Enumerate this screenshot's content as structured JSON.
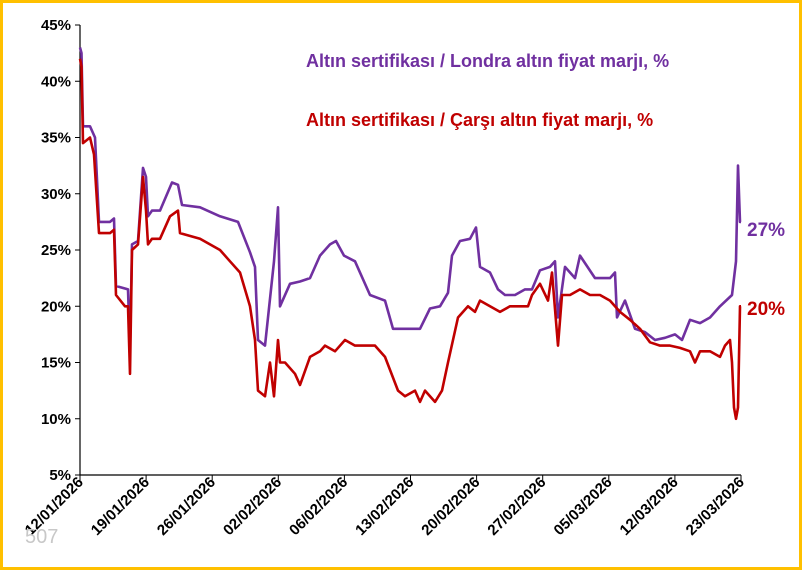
{
  "chart_data": {
    "type": "line",
    "ylim": [
      5,
      45
    ],
    "y_tick_labels": [
      "5%",
      "10%",
      "15%",
      "20%",
      "25%",
      "30%",
      "35%",
      "40%",
      "45%"
    ],
    "x_tick_labels": [
      "12/01/2026",
      "19/01/2026",
      "26/01/2026",
      "02/02/2026",
      "06/02/2026",
      "13/02/2026",
      "20/02/2026",
      "27/02/2026",
      "05/03/2026",
      "12/03/2026",
      "23/03/2026"
    ],
    "grid": false,
    "legend_position": "top-right",
    "watermark": "507",
    "series": [
      {
        "name": "Altın sertifikası / Londra altın fiyat marjı, %",
        "color": "#7030a0",
        "end_label": "27%",
        "points": [
          [
            0,
            43
          ],
          [
            1.5,
            42.5
          ],
          [
            3,
            36
          ],
          [
            10,
            36
          ],
          [
            15,
            35
          ],
          [
            19,
            27.5
          ],
          [
            30,
            27.5
          ],
          [
            34,
            27.8
          ],
          [
            36,
            21.8
          ],
          [
            48,
            21.5
          ],
          [
            50,
            16
          ],
          [
            52,
            25.5
          ],
          [
            58,
            25.8
          ],
          [
            63,
            32.3
          ],
          [
            66,
            31.5
          ],
          [
            68,
            28
          ],
          [
            72,
            28.5
          ],
          [
            80,
            28.5
          ],
          [
            92,
            31
          ],
          [
            98,
            30.8
          ],
          [
            102,
            29
          ],
          [
            120,
            28.8
          ],
          [
            140,
            28
          ],
          [
            158,
            27.5
          ],
          [
            170,
            24.8
          ],
          [
            175,
            23.5
          ],
          [
            178,
            17
          ],
          [
            185,
            16.5
          ],
          [
            194,
            24
          ],
          [
            198,
            28.8
          ],
          [
            200,
            20
          ],
          [
            210,
            22
          ],
          [
            220,
            22.2
          ],
          [
            230,
            22.5
          ],
          [
            240,
            24.5
          ],
          [
            250,
            25.5
          ],
          [
            256,
            25.8
          ],
          [
            264,
            24.5
          ],
          [
            275,
            24
          ],
          [
            290,
            21
          ],
          [
            305,
            20.5
          ],
          [
            313,
            18
          ],
          [
            330,
            18
          ],
          [
            340,
            18
          ],
          [
            350,
            19.8
          ],
          [
            360,
            20
          ],
          [
            368,
            21.2
          ],
          [
            372,
            24.5
          ],
          [
            380,
            25.8
          ],
          [
            390,
            26
          ],
          [
            396,
            27
          ],
          [
            400,
            23.5
          ],
          [
            410,
            23
          ],
          [
            418,
            21.5
          ],
          [
            425,
            21
          ],
          [
            435,
            21
          ],
          [
            445,
            21.5
          ],
          [
            452,
            21.5
          ],
          [
            460,
            23.2
          ],
          [
            470,
            23.5
          ],
          [
            475,
            24
          ],
          [
            478,
            19
          ],
          [
            485,
            23.5
          ],
          [
            495,
            22.5
          ],
          [
            500,
            24.5
          ],
          [
            515,
            22.5
          ],
          [
            530,
            22.5
          ],
          [
            535,
            23
          ],
          [
            537,
            19
          ],
          [
            545,
            20.5
          ],
          [
            555,
            18
          ],
          [
            565,
            17.7
          ],
          [
            575,
            17
          ],
          [
            585,
            17.2
          ],
          [
            595,
            17.5
          ],
          [
            602,
            17
          ],
          [
            610,
            18.8
          ],
          [
            620,
            18.5
          ],
          [
            630,
            19
          ],
          [
            640,
            20
          ],
          [
            652,
            21
          ],
          [
            656,
            24
          ],
          [
            658,
            32.5
          ],
          [
            660,
            27.5
          ],
          [
            661,
            27.5
          ]
        ]
      },
      {
        "name": "Altın sertifikası / Çarşı altın fiyat marjı, %",
        "color": "#c00000",
        "end_label": "20%",
        "points": [
          [
            0,
            42
          ],
          [
            1.5,
            41.3
          ],
          [
            3,
            34.5
          ],
          [
            10,
            35
          ],
          [
            14,
            33.5
          ],
          [
            19,
            26.5
          ],
          [
            30,
            26.5
          ],
          [
            34,
            26.8
          ],
          [
            36,
            21
          ],
          [
            45,
            20
          ],
          [
            48,
            20
          ],
          [
            50,
            14
          ],
          [
            52,
            25
          ],
          [
            58,
            25.5
          ],
          [
            63,
            31.5
          ],
          [
            66,
            28.5
          ],
          [
            68,
            25.5
          ],
          [
            72,
            26
          ],
          [
            80,
            26
          ],
          [
            90,
            28
          ],
          [
            98,
            28.5
          ],
          [
            100,
            26.5
          ],
          [
            120,
            26
          ],
          [
            140,
            25
          ],
          [
            150,
            24
          ],
          [
            160,
            23
          ],
          [
            170,
            20
          ],
          [
            175,
            17
          ],
          [
            178,
            12.5
          ],
          [
            185,
            12
          ],
          [
            190,
            15
          ],
          [
            194,
            12
          ],
          [
            198,
            17
          ],
          [
            200,
            15
          ],
          [
            205,
            15
          ],
          [
            215,
            14
          ],
          [
            220,
            13
          ],
          [
            230,
            15.5
          ],
          [
            240,
            16
          ],
          [
            245,
            16.5
          ],
          [
            255,
            16
          ],
          [
            265,
            17
          ],
          [
            275,
            16.5
          ],
          [
            295,
            16.5
          ],
          [
            305,
            15.5
          ],
          [
            318,
            12.5
          ],
          [
            325,
            12
          ],
          [
            335,
            12.5
          ],
          [
            340,
            11.5
          ],
          [
            345,
            12.5
          ],
          [
            355,
            11.5
          ],
          [
            362,
            12.5
          ],
          [
            368,
            15
          ],
          [
            378,
            19
          ],
          [
            388,
            20
          ],
          [
            395,
            19.5
          ],
          [
            400,
            20.5
          ],
          [
            410,
            20
          ],
          [
            420,
            19.5
          ],
          [
            430,
            20
          ],
          [
            440,
            20
          ],
          [
            448,
            20
          ],
          [
            452,
            21
          ],
          [
            460,
            22
          ],
          [
            468,
            20.5
          ],
          [
            472,
            23
          ],
          [
            478,
            16.5
          ],
          [
            482,
            21
          ],
          [
            490,
            21
          ],
          [
            500,
            21.5
          ],
          [
            510,
            21
          ],
          [
            520,
            21
          ],
          [
            530,
            20.5
          ],
          [
            540,
            19.5
          ],
          [
            550,
            18.8
          ],
          [
            560,
            18
          ],
          [
            570,
            16.8
          ],
          [
            580,
            16.5
          ],
          [
            590,
            16.5
          ],
          [
            600,
            16.3
          ],
          [
            610,
            16
          ],
          [
            615,
            15
          ],
          [
            620,
            16
          ],
          [
            630,
            16
          ],
          [
            640,
            15.5
          ],
          [
            645,
            16.5
          ],
          [
            650,
            17
          ],
          [
            652,
            15
          ],
          [
            654,
            11
          ],
          [
            656,
            10
          ],
          [
            658,
            11
          ],
          [
            660,
            20
          ],
          [
            661,
            20
          ]
        ]
      }
    ]
  }
}
